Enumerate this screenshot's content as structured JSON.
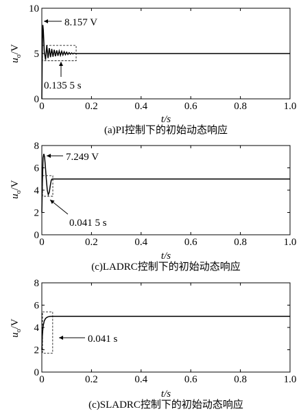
{
  "chart_data": [
    {
      "type": "line",
      "caption": "(a)PI控制下的初始动态响应",
      "xlabel": "t/s",
      "ylabel_main": "u",
      "ylabel_sub": "o",
      "ylabel_unit": "/V",
      "xlim": [
        0,
        1.0
      ],
      "ylim": [
        0,
        10
      ],
      "xticks": [
        "0",
        "0.2",
        "0.4",
        "0.6",
        "0.8",
        "1.0"
      ],
      "yticks": [
        "0",
        "5",
        "10"
      ],
      "ytick_values": [
        0,
        5,
        10
      ],
      "steady_value": 5,
      "series": [
        {
          "x": [
            0,
            0.002,
            0.004,
            0.006,
            0.01,
            0.015,
            0.02,
            0.025,
            0.03,
            0.035,
            0.04,
            0.045,
            0.05,
            0.055,
            0.06,
            0.065,
            0.07,
            0.075,
            0.08,
            0.085,
            0.09,
            0.095,
            0.1,
            0.105,
            0.11,
            0.115,
            0.12,
            0.125,
            0.13,
            0.136,
            0.2,
            1.0
          ],
          "y": [
            0,
            5.5,
            8.157,
            7.6,
            5.2,
            4.3,
            5.9,
            4.5,
            5.6,
            4.6,
            5.5,
            4.65,
            5.42,
            4.7,
            5.35,
            4.75,
            5.3,
            4.8,
            5.25,
            4.84,
            5.2,
            4.87,
            5.15,
            4.9,
            5.1,
            4.93,
            5.07,
            4.96,
            5.04,
            5.0,
            5.0,
            5.0
          ]
        }
      ],
      "annotations": [
        {
          "text": "8.157 V",
          "x": 0.004,
          "y": 8.157
        },
        {
          "text": "0.135 5 s",
          "x": 0.1355
        }
      ],
      "box": {
        "x0": 0.0,
        "x1": 0.1355,
        "y0": 4.2,
        "y1": 5.9
      }
    },
    {
      "type": "line",
      "caption": "(c)LADRC控制下的初始动态响应",
      "xlabel": "t/s",
      "ylabel_main": "u",
      "ylabel_sub": "o",
      "ylabel_unit": "/V",
      "xlim": [
        0,
        1.0
      ],
      "ylim": [
        0,
        8
      ],
      "xticks": [
        "0",
        "0.2",
        "0.4",
        "0.6",
        "0.8",
        "1.0"
      ],
      "yticks": [
        "0",
        "2",
        "4",
        "6",
        "8"
      ],
      "ytick_values": [
        0,
        2,
        4,
        6,
        8
      ],
      "steady_value": 5,
      "series": [
        {
          "x": [
            0,
            0.002,
            0.005,
            0.008,
            0.011,
            0.014,
            0.018,
            0.022,
            0.026,
            0.03,
            0.034,
            0.038,
            0.0415,
            0.2,
            1.0
          ],
          "y": [
            2.0,
            4.5,
            6.9,
            7.249,
            7.0,
            6.2,
            5.0,
            4.0,
            3.6,
            3.8,
            4.4,
            4.9,
            5.0,
            5.0,
            5.0
          ]
        }
      ],
      "annotations": [
        {
          "text": "7.249 V",
          "x": 0.008,
          "y": 7.249
        },
        {
          "text": "0.041 5 s",
          "x": 0.0415
        }
      ],
      "box": {
        "x0": 0.0,
        "x1": 0.0415,
        "y0": 3.45,
        "y1": 5.3
      }
    },
    {
      "type": "line",
      "caption": "(c)SLADRC控制下的初始动态响应",
      "xlabel": "t/s",
      "ylabel_main": "u",
      "ylabel_sub": "o",
      "ylabel_unit": "/V",
      "xlim": [
        0,
        1.0
      ],
      "ylim": [
        0,
        8
      ],
      "xticks": [
        "0",
        "0.2",
        "0.4",
        "0.6",
        "0.8",
        "1.0"
      ],
      "yticks": [
        "0",
        "2",
        "4",
        "6",
        "8"
      ],
      "ytick_values": [
        0,
        2,
        4,
        6,
        8
      ],
      "steady_value": 5,
      "series": [
        {
          "x": [
            0,
            0.002,
            0.005,
            0.01,
            0.015,
            0.02,
            0.025,
            0.03,
            0.035,
            0.041,
            0.2,
            1.0
          ],
          "y": [
            2.0,
            3.2,
            4.1,
            4.6,
            4.8,
            4.9,
            4.95,
            4.98,
            4.99,
            5.0,
            5.0,
            5.0
          ]
        }
      ],
      "annotations": [
        {
          "text": "0.041 s",
          "x": 0.041
        }
      ],
      "box": {
        "x0": 0.0,
        "x1": 0.041,
        "y0": 1.7,
        "y1": 5.4
      }
    }
  ]
}
